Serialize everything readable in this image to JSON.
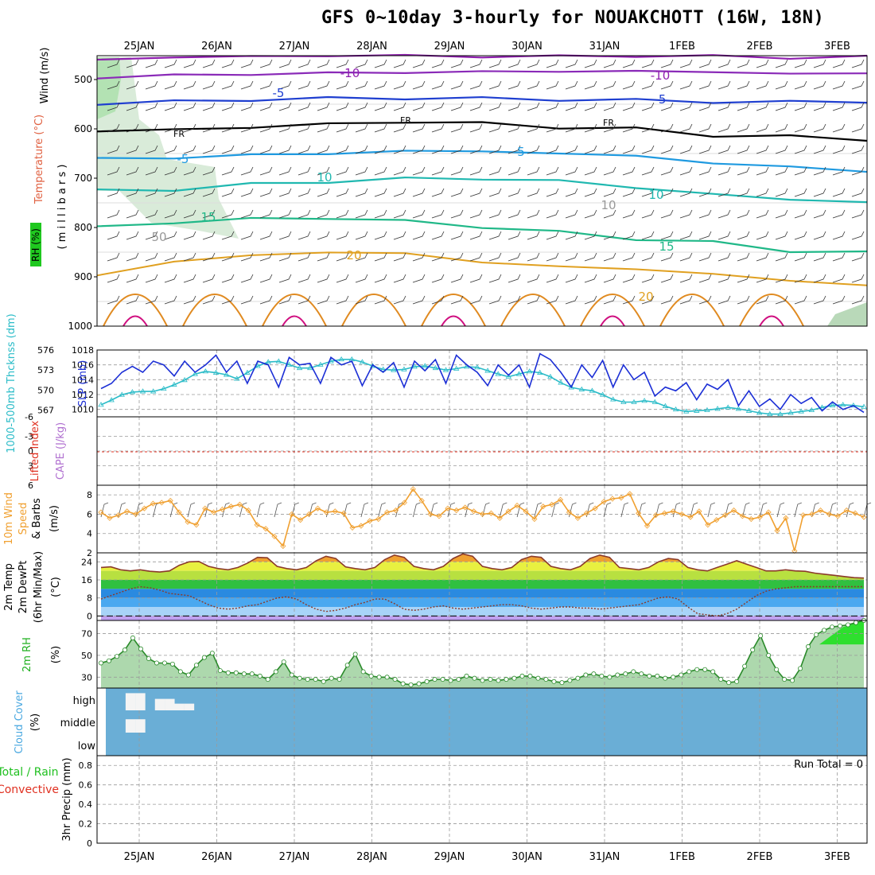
{
  "title": "GFS 0~10day 3-hourly for NOUAKCHOTT (16W, 18N)",
  "dates": [
    "25JAN",
    "26JAN",
    "27JAN",
    "28JAN",
    "29JAN",
    "30JAN",
    "31JAN",
    "1FEB",
    "2FEB",
    "3FEB"
  ],
  "colors": {
    "grid": "#9a9a9a",
    "slp": "#1c2fd6",
    "thickness": "#2bbcc8",
    "wind10m": "#f0a030",
    "temp_line": "#8b3a2a",
    "rh_fill": "#8ac88a",
    "rh_line": "#2a8a2a",
    "cloud_bg": "#6aaed6",
    "lifted": "#e03020",
    "cape": "#b070d0"
  },
  "panels": {
    "upper": {
      "ylabels": {
        "wind": "Wind (m/s)",
        "temperature": "Temperature (°C)",
        "rh": "RH (%)",
        "pressure": "( m i l l i b a r s )"
      },
      "ticks": [
        "500",
        "600",
        "700",
        "800",
        "900",
        "1000"
      ],
      "iso_labels": [
        "-10",
        "-10",
        "-5",
        "-5",
        "FR",
        "FR",
        "FR",
        "-5",
        "5",
        "10",
        "10",
        "15",
        "15",
        "20",
        "20",
        "50",
        "10"
      ]
    },
    "slp": {
      "ylabels": {
        "thickness": "1000-500mb Thcknss (dm)",
        "slp": "SLP (mb)"
      },
      "left_ticks": [
        "576",
        "573",
        "570",
        "567"
      ],
      "right_ticks": [
        "1018",
        "1016",
        "1014",
        "1012",
        "1010"
      ]
    },
    "li": {
      "ylabels": {
        "lifted": "Lifted Index",
        "cape": "CAPE (J/kg)"
      },
      "ticks": [
        "-6",
        "-3",
        "0",
        "3",
        "6"
      ]
    },
    "wind": {
      "ylabels": {
        "a": "10m Wind",
        "b": "Speed",
        "c": "(m/s)",
        "d": "& Barbs"
      },
      "ticks": [
        "8",
        "6",
        "4",
        "2"
      ]
    },
    "temp": {
      "ylabels": {
        "a": "2m Temp",
        "b": "2m DewPt",
        "c": "(6hr Min/Max)",
        "d": "(°C)"
      },
      "ticks": [
        "24",
        "16",
        "8",
        "0"
      ]
    },
    "rh": {
      "ylabels": {
        "a": "2m RH",
        "b": "(%)"
      },
      "ticks": [
        "70",
        "50",
        "30"
      ]
    },
    "cloud": {
      "ylabels": {
        "a": "Cloud Cover",
        "b": "(%)"
      },
      "levels": [
        "high",
        "middle",
        "low"
      ]
    },
    "precip": {
      "ylabels": {
        "a": "Total / Rain",
        "b": "Convective",
        "c": "3hr Precip (mm)"
      },
      "ticks": [
        "0.8",
        "0.6",
        "0.4",
        "0.2",
        "0"
      ],
      "run_total": "Run Total = 0"
    }
  },
  "chart_data": [
    {
      "type": "line",
      "panel": "slp",
      "name": "SLP (mb)",
      "unit": "mb",
      "ylim": [
        1009,
        1018
      ],
      "values": [
        1012.8,
        1013.5,
        1015.0,
        1015.8,
        1015.0,
        1016.5,
        1016.0,
        1014.5,
        1016.5,
        1015.0,
        1016.0,
        1017.3,
        1015.0,
        1016.5,
        1013.5,
        1016.5,
        1016.0,
        1013.0,
        1017.0,
        1016.0,
        1016.2,
        1013.5,
        1017.0,
        1016.0,
        1016.5,
        1013.2,
        1016.0,
        1015.0,
        1016.3,
        1013.0,
        1016.5,
        1015.2,
        1016.7,
        1013.5,
        1017.3,
        1016.0,
        1015.0,
        1013.2,
        1016.0,
        1014.6,
        1016.0,
        1013.0,
        1017.5,
        1016.7,
        1015.0,
        1013.0,
        1016.0,
        1014.3,
        1016.6,
        1013.0,
        1016.0,
        1014.0,
        1015.0,
        1011.8,
        1013.0,
        1012.5,
        1013.6,
        1011.3,
        1013.4,
        1012.7,
        1014.0,
        1010.5,
        1012.5,
        1010.4,
        1011.4,
        1010.0,
        1012.0,
        1010.8,
        1011.6,
        1009.8,
        1011.0,
        1010.0,
        1010.5,
        1009.6
      ]
    },
    {
      "type": "line",
      "panel": "slp",
      "name": "1000-500mb Thcknss (dm)",
      "unit": "dm",
      "ylim": [
        566,
        576
      ],
      "values": [
        567.8,
        568.5,
        569.3,
        569.7,
        569.8,
        569.8,
        570.2,
        570.8,
        571.5,
        572.4,
        572.8,
        572.6,
        572.3,
        571.7,
        572.6,
        573.6,
        574.2,
        574.3,
        573.8,
        573.3,
        573.3,
        573.8,
        574.3,
        574.6,
        574.6,
        574.2,
        573.6,
        573.1,
        573.0,
        573.1,
        573.5,
        573.6,
        573.3,
        573.0,
        573.2,
        573.5,
        573.4,
        572.9,
        572.4,
        572.0,
        572.4,
        572.8,
        572.6,
        572.0,
        571.1,
        570.4,
        570.1,
        569.9,
        569.3,
        568.6,
        568.2,
        568.2,
        568.4,
        568.2,
        567.6,
        567.1,
        566.8,
        566.9,
        567.0,
        567.2,
        567.4,
        567.2,
        566.9,
        566.6,
        566.4,
        566.4,
        566.6,
        566.8,
        567.0,
        567.4,
        567.7,
        567.8,
        567.7,
        567.5
      ]
    },
    {
      "type": "line",
      "panel": "wind",
      "name": "10m Wind Speed (m/s)",
      "unit": "m/s",
      "ylim": [
        2,
        9
      ],
      "values": [
        6.2,
        5.6,
        5.9,
        6.3,
        6.0,
        6.6,
        7.1,
        7.2,
        7.4,
        6.2,
        5.2,
        4.9,
        6.6,
        6.2,
        6.5,
        6.8,
        7.0,
        6.4,
        4.9,
        4.5,
        3.7,
        2.7,
        6.0,
        5.4,
        6.0,
        6.6,
        6.2,
        6.3,
        6.1,
        4.6,
        4.8,
        5.3,
        5.5,
        6.2,
        6.4,
        7.2,
        8.6,
        7.4,
        6.0,
        5.8,
        6.6,
        6.4,
        6.7,
        6.3,
        6.0,
        6.1,
        5.6,
        6.3,
        6.9,
        6.3,
        5.5,
        6.8,
        7.0,
        7.5,
        6.2,
        5.6,
        6.1,
        6.6,
        7.3,
        7.6,
        7.7,
        8.1,
        6.1,
        4.8,
        5.9,
        6.1,
        6.3,
        6.0,
        5.7,
        6.3,
        4.9,
        5.4,
        5.9,
        6.4,
        5.8,
        5.5,
        5.7,
        6.2,
        4.3,
        5.6,
        2.2,
        5.9,
        6.0,
        6.4,
        6.0,
        5.8,
        6.4,
        6.1,
        5.7
      ]
    },
    {
      "type": "area",
      "panel": "temp",
      "name": "2m Temp (°C)",
      "unit": "°C",
      "ylim": [
        -2,
        28
      ],
      "values": [
        21.5,
        21.8,
        20.5,
        20.0,
        20.5,
        19.8,
        19.5,
        20.0,
        22.5,
        24.0,
        24.2,
        22.0,
        21.0,
        20.5,
        21.5,
        23.5,
        26.0,
        25.8,
        22.0,
        21.0,
        20.5,
        21.5,
        24.5,
        26.5,
        25.5,
        21.8,
        21.0,
        20.5,
        21.5,
        25.0,
        27.0,
        26.0,
        22.0,
        21.0,
        20.5,
        22.0,
        25.5,
        27.5,
        26.5,
        22.0,
        21.0,
        20.5,
        21.5,
        25.0,
        26.5,
        26.0,
        22.0,
        21.0,
        20.5,
        22.0,
        25.5,
        27.0,
        26.0,
        21.5,
        21.0,
        20.5,
        21.5,
        24.0,
        25.5,
        25.0,
        21.5,
        20.5,
        20.0,
        21.5,
        23.0,
        24.5,
        23.0,
        21.5,
        20.0,
        20.0,
        20.5,
        20.0,
        19.8,
        19.0,
        18.5,
        18.0,
        17.5,
        17.0,
        16.8
      ]
    },
    {
      "type": "line",
      "panel": "temp",
      "name": "2m DewPt (°C)",
      "unit": "°C",
      "ylim": [
        -2,
        28
      ],
      "values": [
        7.5,
        9.0,
        10.5,
        12.0,
        13.0,
        12.5,
        11.5,
        10.0,
        9.5,
        9.0,
        7.0,
        5.0,
        3.5,
        3.0,
        3.5,
        4.5,
        5.0,
        6.5,
        8.0,
        8.5,
        7.5,
        5.0,
        3.0,
        2.0,
        2.5,
        3.5,
        5.0,
        6.0,
        7.5,
        7.5,
        5.5,
        3.0,
        2.5,
        3.0,
        4.0,
        4.5,
        3.5,
        3.0,
        3.5,
        4.0,
        4.5,
        5.0,
        5.0,
        4.5,
        3.5,
        3.0,
        3.5,
        4.0,
        4.0,
        3.5,
        3.5,
        3.0,
        3.5,
        4.0,
        4.5,
        5.0,
        6.5,
        8.0,
        8.5,
        7.5,
        4.0,
        1.0,
        0.5,
        0.0,
        1.0,
        3.0,
        6.0,
        9.0,
        11.0,
        12.0,
        12.5,
        13.0,
        13.0,
        13.0,
        13.0,
        13.0,
        13.0,
        13.0,
        13.0
      ]
    },
    {
      "type": "area",
      "panel": "rh",
      "name": "2m RH (%)",
      "unit": "%",
      "ylim": [
        20,
        82
      ],
      "values": [
        43,
        45,
        49,
        55,
        66,
        56,
        47,
        43,
        43,
        42,
        35,
        32,
        41,
        48,
        52,
        36,
        34,
        34,
        33,
        33,
        31,
        28,
        35,
        44,
        32,
        29,
        28,
        28,
        26,
        29,
        28,
        41,
        51,
        35,
        31,
        30,
        30,
        28,
        24,
        23,
        24,
        26,
        28,
        28,
        27,
        28,
        31,
        29,
        27,
        28,
        27,
        28,
        29,
        31,
        31,
        29,
        28,
        26,
        25,
        27,
        29,
        32,
        33,
        31,
        30,
        32,
        33,
        35,
        33,
        31,
        31,
        29,
        30,
        32,
        35,
        37,
        37,
        35,
        28,
        25,
        26,
        40,
        55,
        68,
        50,
        37,
        28,
        27,
        38,
        58,
        69,
        73,
        76,
        77,
        78,
        80,
        82
      ]
    },
    {
      "type": "bar",
      "panel": "cloud",
      "name": "Cloud Cover high (%)",
      "unit": "%",
      "ylim": [
        0,
        100
      ],
      "values": [
        0,
        0,
        0,
        90,
        90,
        0,
        60,
        60,
        35,
        35,
        0,
        0,
        0,
        0,
        0,
        0,
        0,
        0,
        0,
        0,
        0,
        0,
        0,
        0,
        0,
        0,
        0,
        0,
        0,
        0,
        0,
        0,
        0,
        0,
        0,
        0,
        0,
        0,
        0,
        0,
        0,
        0,
        0,
        0,
        0,
        0,
        0,
        0,
        0,
        0,
        0,
        0,
        0,
        0,
        0,
        0,
        0,
        0,
        0,
        0,
        0,
        0,
        0,
        0,
        0,
        0,
        0,
        0,
        0,
        0,
        0,
        0,
        0,
        0,
        0,
        0,
        0,
        0,
        0
      ]
    },
    {
      "type": "bar",
      "panel": "cloud",
      "name": "Cloud Cover middle (%)",
      "unit": "%",
      "ylim": [
        0,
        100
      ],
      "values": [
        0,
        0,
        0,
        70,
        70,
        0,
        0,
        0,
        0,
        0,
        0,
        0,
        0,
        0,
        0,
        0,
        0,
        0,
        0,
        0,
        0,
        0,
        0,
        0,
        0,
        0,
        0,
        0,
        0,
        0,
        0,
        0,
        0,
        0,
        0,
        0,
        0,
        0,
        0,
        0,
        0,
        0,
        0,
        0,
        0,
        0,
        0,
        0,
        0,
        0,
        0,
        0,
        0,
        0,
        0,
        0,
        0,
        0,
        0,
        0,
        0,
        0,
        0,
        0,
        0,
        0,
        0,
        0,
        0,
        0,
        0,
        0,
        0,
        0,
        0,
        0,
        0,
        0,
        0
      ]
    },
    {
      "type": "bar",
      "panel": "precip",
      "name": "3hr Precip (mm)",
      "unit": "mm",
      "ylim": [
        0,
        0.9
      ],
      "values": [
        0
      ]
    }
  ]
}
